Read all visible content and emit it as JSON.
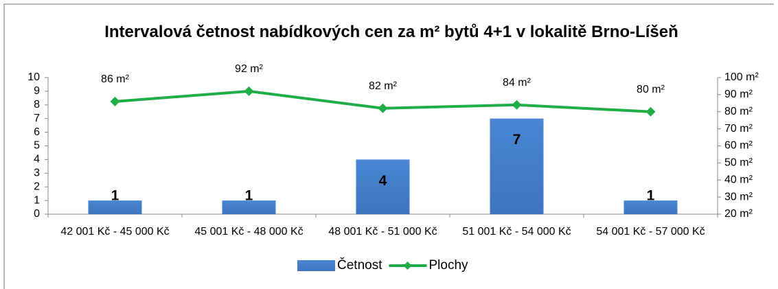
{
  "chart_data": {
    "type": "bar",
    "title": "Intervalová četnost nabídkových cen za m² bytů 4+1 v lokalitě Brno-Líšeň",
    "categories": [
      "42 001 Kč - 45 000 Kč",
      "45 001 Kč - 48 000 Kč",
      "48 001 Kč - 51 000 Kč",
      "51 001 Kč - 54 000 Kč",
      "54 001 Kč - 57 000 Kč"
    ],
    "series": [
      {
        "name": "Četnost",
        "type": "bar",
        "color": "#3c74c0",
        "values": [
          1,
          1,
          4,
          7,
          1
        ]
      },
      {
        "name": "Plochy",
        "type": "line",
        "axis": "y2",
        "color": "#1fae45",
        "values": [
          86,
          92,
          82,
          84,
          80
        ],
        "value_labels": [
          "86 m²",
          "92 m²",
          "82 m²",
          "84 m²",
          "80 m²"
        ]
      }
    ],
    "ylim": [
      0,
      10
    ],
    "yticks": [
      0,
      1,
      2,
      3,
      4,
      5,
      6,
      7,
      8,
      9,
      10
    ],
    "y2lim": [
      20,
      100
    ],
    "y2ticks": [
      {
        "value": 20,
        "label": "20 m²"
      },
      {
        "value": 30,
        "label": "30 m²"
      },
      {
        "value": 40,
        "label": "40 m²"
      },
      {
        "value": 50,
        "label": "50 m²"
      },
      {
        "value": 60,
        "label": "60 m²"
      },
      {
        "value": 70,
        "label": "70 m²"
      },
      {
        "value": 80,
        "label": "80 m²"
      },
      {
        "value": 90,
        "label": "90 m²"
      },
      {
        "value": 100,
        "label": "100 m²"
      }
    ],
    "legend": "bottom"
  }
}
